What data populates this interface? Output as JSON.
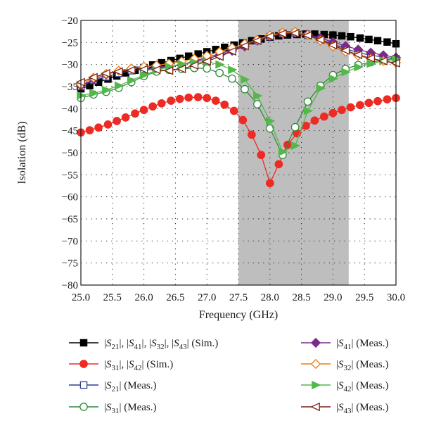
{
  "chart_data": {
    "type": "line",
    "xlabel": "Frequency (GHz)",
    "ylabel": "Isolation (dB)",
    "xlim": [
      25.0,
      30.0
    ],
    "ylim": [
      -80,
      -20
    ],
    "x_ticks": [
      "25.0",
      "25.5",
      "26.0",
      "26.5",
      "27.0",
      "27.5",
      "28.0",
      "28.5",
      "29.0",
      "29.5",
      "30.0"
    ],
    "y_ticks": [
      "−20",
      "−25",
      "−30",
      "−35",
      "−40",
      "−45",
      "−50",
      "−55",
      "−60",
      "−65",
      "−70",
      "−75",
      "−80"
    ],
    "grid": "dotted",
    "highlight_band": [
      27.5,
      29.25
    ],
    "highlight_color": "#bebebe",
    "series": [
      {
        "label_parts": [
          [
            "|S",
            "21",
            "|"
          ],
          [
            ", |S",
            "41",
            "|"
          ],
          [
            ", |S",
            "32",
            "|"
          ],
          [
            ", |S",
            "43",
            "| (Sim.)"
          ]
        ],
        "color": "#000000",
        "marker": "square-filled",
        "x": [
          25.0,
          25.14,
          25.28,
          25.43,
          25.57,
          25.71,
          25.86,
          26.0,
          26.14,
          26.28,
          26.43,
          26.57,
          26.71,
          26.86,
          27.0,
          27.14,
          27.28,
          27.43,
          27.57,
          27.71,
          27.86,
          28.0,
          28.14,
          28.28,
          28.43,
          28.57,
          28.71,
          28.86,
          29.0,
          29.14,
          29.28,
          29.43,
          29.57,
          29.71,
          29.86,
          30.0
        ],
        "values": [
          -35.5,
          -34.8,
          -34.0,
          -33.3,
          -32.6,
          -31.9,
          -31.3,
          -30.7,
          -30.1,
          -29.6,
          -29.1,
          -28.6,
          -28.1,
          -27.6,
          -27.1,
          -26.6,
          -26.1,
          -25.6,
          -25.1,
          -24.6,
          -24.2,
          -23.8,
          -23.5,
          -23.3,
          -23.2,
          -23.1,
          -23.1,
          -23.2,
          -23.3,
          -23.5,
          -23.7,
          -24.0,
          -24.3,
          -24.6,
          -24.9,
          -25.3
        ]
      },
      {
        "label_parts": [
          [
            "|S",
            "31",
            "|"
          ],
          [
            ", |S",
            "42",
            "| (Sim.)"
          ]
        ],
        "color": "#ee2a24",
        "marker": "circle-filled",
        "x": [
          25.0,
          25.14,
          25.28,
          25.43,
          25.57,
          25.71,
          25.86,
          26.0,
          26.14,
          26.28,
          26.43,
          26.57,
          26.71,
          26.86,
          27.0,
          27.14,
          27.28,
          27.43,
          27.57,
          27.71,
          27.86,
          28.0,
          28.14,
          28.28,
          28.43,
          28.57,
          28.71,
          28.86,
          29.0,
          29.14,
          29.28,
          29.43,
          29.57,
          29.71,
          29.86,
          30.0
        ],
        "values": [
          -45.4,
          -44.9,
          -44.3,
          -43.6,
          -42.8,
          -42.0,
          -41.1,
          -40.3,
          -39.5,
          -38.8,
          -38.2,
          -37.8,
          -37.5,
          -37.4,
          -37.6,
          -38.2,
          -39.1,
          -40.5,
          -42.6,
          -45.9,
          -50.5,
          -56.9,
          -52.6,
          -48.2,
          -45.6,
          -43.9,
          -42.7,
          -41.8,
          -41.0,
          -40.3,
          -39.7,
          -39.2,
          -38.7,
          -38.3,
          -37.9,
          -37.6
        ]
      },
      {
        "label_parts": [
          [
            "|S",
            "21",
            "| (Meas.)"
          ]
        ],
        "color": "#2e3f91",
        "marker": "square-open",
        "x": [
          25.0,
          25.2,
          25.4,
          25.6,
          25.8,
          26.0,
          26.2,
          26.4,
          26.6,
          26.8,
          27.0,
          27.2,
          27.4,
          27.6,
          27.8,
          28.0,
          28.2,
          28.4,
          28.6,
          28.8,
          29.0,
          29.2,
          29.4,
          29.6,
          29.8,
          30.0
        ],
        "values": [
          -35.0,
          -33.6,
          -32.8,
          -32.0,
          -31.4,
          -31.0,
          -30.8,
          -30.6,
          -30.0,
          -29.2,
          -28.4,
          -27.6,
          -26.6,
          -25.7,
          -24.6,
          -23.7,
          -23.0,
          -22.9,
          -23.4,
          -24.3,
          -25.4,
          -26.4,
          -27.3,
          -27.9,
          -28.3,
          -28.7
        ]
      },
      {
        "label_parts": [
          [
            "|S",
            "31",
            "| (Meas.)"
          ]
        ],
        "color": "#2f8a3a",
        "marker": "circle-open",
        "x": [
          25.0,
          25.2,
          25.4,
          25.6,
          25.8,
          26.0,
          26.2,
          26.4,
          26.6,
          26.8,
          27.0,
          27.2,
          27.4,
          27.6,
          27.8,
          28.0,
          28.2,
          28.4,
          28.6,
          28.8,
          29.0,
          29.2,
          29.4,
          29.6,
          29.8,
          30.0
        ],
        "values": [
          -37.6,
          -36.8,
          -36.2,
          -35.3,
          -34.0,
          -32.6,
          -31.6,
          -31.2,
          -31.0,
          -30.8,
          -30.9,
          -31.9,
          -33.2,
          -35.6,
          -39.0,
          -44.5,
          -50.5,
          -44.2,
          -38.4,
          -34.8,
          -32.4,
          -31.0,
          -30.1,
          -29.5,
          -29.0,
          -28.6
        ]
      },
      {
        "label_parts": [
          [
            "|S",
            "41",
            "| (Meas.)"
          ]
        ],
        "color": "#7b2a8a",
        "marker": "diamond-filled",
        "x": [
          25.0,
          25.2,
          25.4,
          25.6,
          25.8,
          26.0,
          26.2,
          26.4,
          26.6,
          26.8,
          27.0,
          27.2,
          27.4,
          27.6,
          27.8,
          28.0,
          28.2,
          28.4,
          28.6,
          28.8,
          29.0,
          29.2,
          29.4,
          29.6,
          29.8,
          30.0
        ],
        "values": [
          -34.8,
          -33.4,
          -32.3,
          -31.4,
          -30.9,
          -30.6,
          -30.5,
          -30.5,
          -30.1,
          -29.4,
          -28.7,
          -27.9,
          -26.9,
          -25.9,
          -24.6,
          -23.6,
          -23.0,
          -22.8,
          -23.2,
          -24.0,
          -24.9,
          -25.8,
          -26.6,
          -27.3,
          -27.9,
          -28.4
        ]
      },
      {
        "label_parts": [
          [
            "|S",
            "32",
            "| (Meas.)"
          ]
        ],
        "color": "#f07d12",
        "marker": "diamond-open",
        "x": [
          25.0,
          25.2,
          25.4,
          25.6,
          25.8,
          26.0,
          26.2,
          26.4,
          26.6,
          26.8,
          27.0,
          27.2,
          27.4,
          27.6,
          27.8,
          28.0,
          28.2,
          28.4,
          28.6,
          28.8,
          29.0,
          29.2,
          29.4,
          29.6,
          29.8,
          30.0
        ],
        "values": [
          -34.5,
          -33.0,
          -32.1,
          -31.4,
          -30.9,
          -30.5,
          -30.2,
          -29.8,
          -29.3,
          -28.7,
          -28.0,
          -27.1,
          -26.2,
          -25.3,
          -24.4,
          -23.4,
          -22.8,
          -22.6,
          -23.3,
          -24.6,
          -25.9,
          -27.1,
          -28.0,
          -28.7,
          -29.2,
          -29.6
        ]
      },
      {
        "label_parts": [
          [
            "|S",
            "42",
            "| (Meas.)"
          ]
        ],
        "color": "#52b84a",
        "marker": "triangle-right-filled",
        "x": [
          25.0,
          25.2,
          25.4,
          25.6,
          25.8,
          26.0,
          26.2,
          26.4,
          26.6,
          26.8,
          27.0,
          27.2,
          27.4,
          27.6,
          27.8,
          28.0,
          28.2,
          28.4,
          28.6,
          28.8,
          29.0,
          29.2,
          29.4,
          29.6,
          29.8,
          30.0
        ],
        "values": [
          -37.0,
          -36.5,
          -35.8,
          -34.8,
          -33.6,
          -32.4,
          -31.3,
          -30.5,
          -29.9,
          -29.5,
          -29.4,
          -30.0,
          -31.2,
          -33.4,
          -37.1,
          -42.8,
          -49.8,
          -48.4,
          -40.5,
          -35.4,
          -33.2,
          -31.7,
          -30.6,
          -29.8,
          -29.2,
          -28.8
        ]
      },
      {
        "label_parts": [
          [
            "|S",
            "43",
            "| (Meas.)"
          ]
        ],
        "color": "#7a2410",
        "marker": "triangle-left-open",
        "x": [
          25.0,
          25.2,
          25.4,
          25.6,
          25.8,
          26.0,
          26.2,
          26.4,
          26.6,
          26.8,
          27.0,
          27.2,
          27.4,
          27.6,
          27.8,
          28.0,
          28.2,
          28.4,
          28.6,
          28.8,
          29.0,
          29.2,
          29.4,
          29.6,
          29.8,
          30.0
        ],
        "values": [
          -34.0,
          -32.9,
          -32.0,
          -31.6,
          -31.3,
          -31.1,
          -31.2,
          -31.4,
          -31.0,
          -30.2,
          -29.3,
          -28.2,
          -27.0,
          -25.8,
          -24.6,
          -23.6,
          -23.0,
          -22.9,
          -23.4,
          -24.4,
          -25.6,
          -26.8,
          -27.8,
          -28.6,
          -29.2,
          -29.7
        ]
      }
    ]
  }
}
